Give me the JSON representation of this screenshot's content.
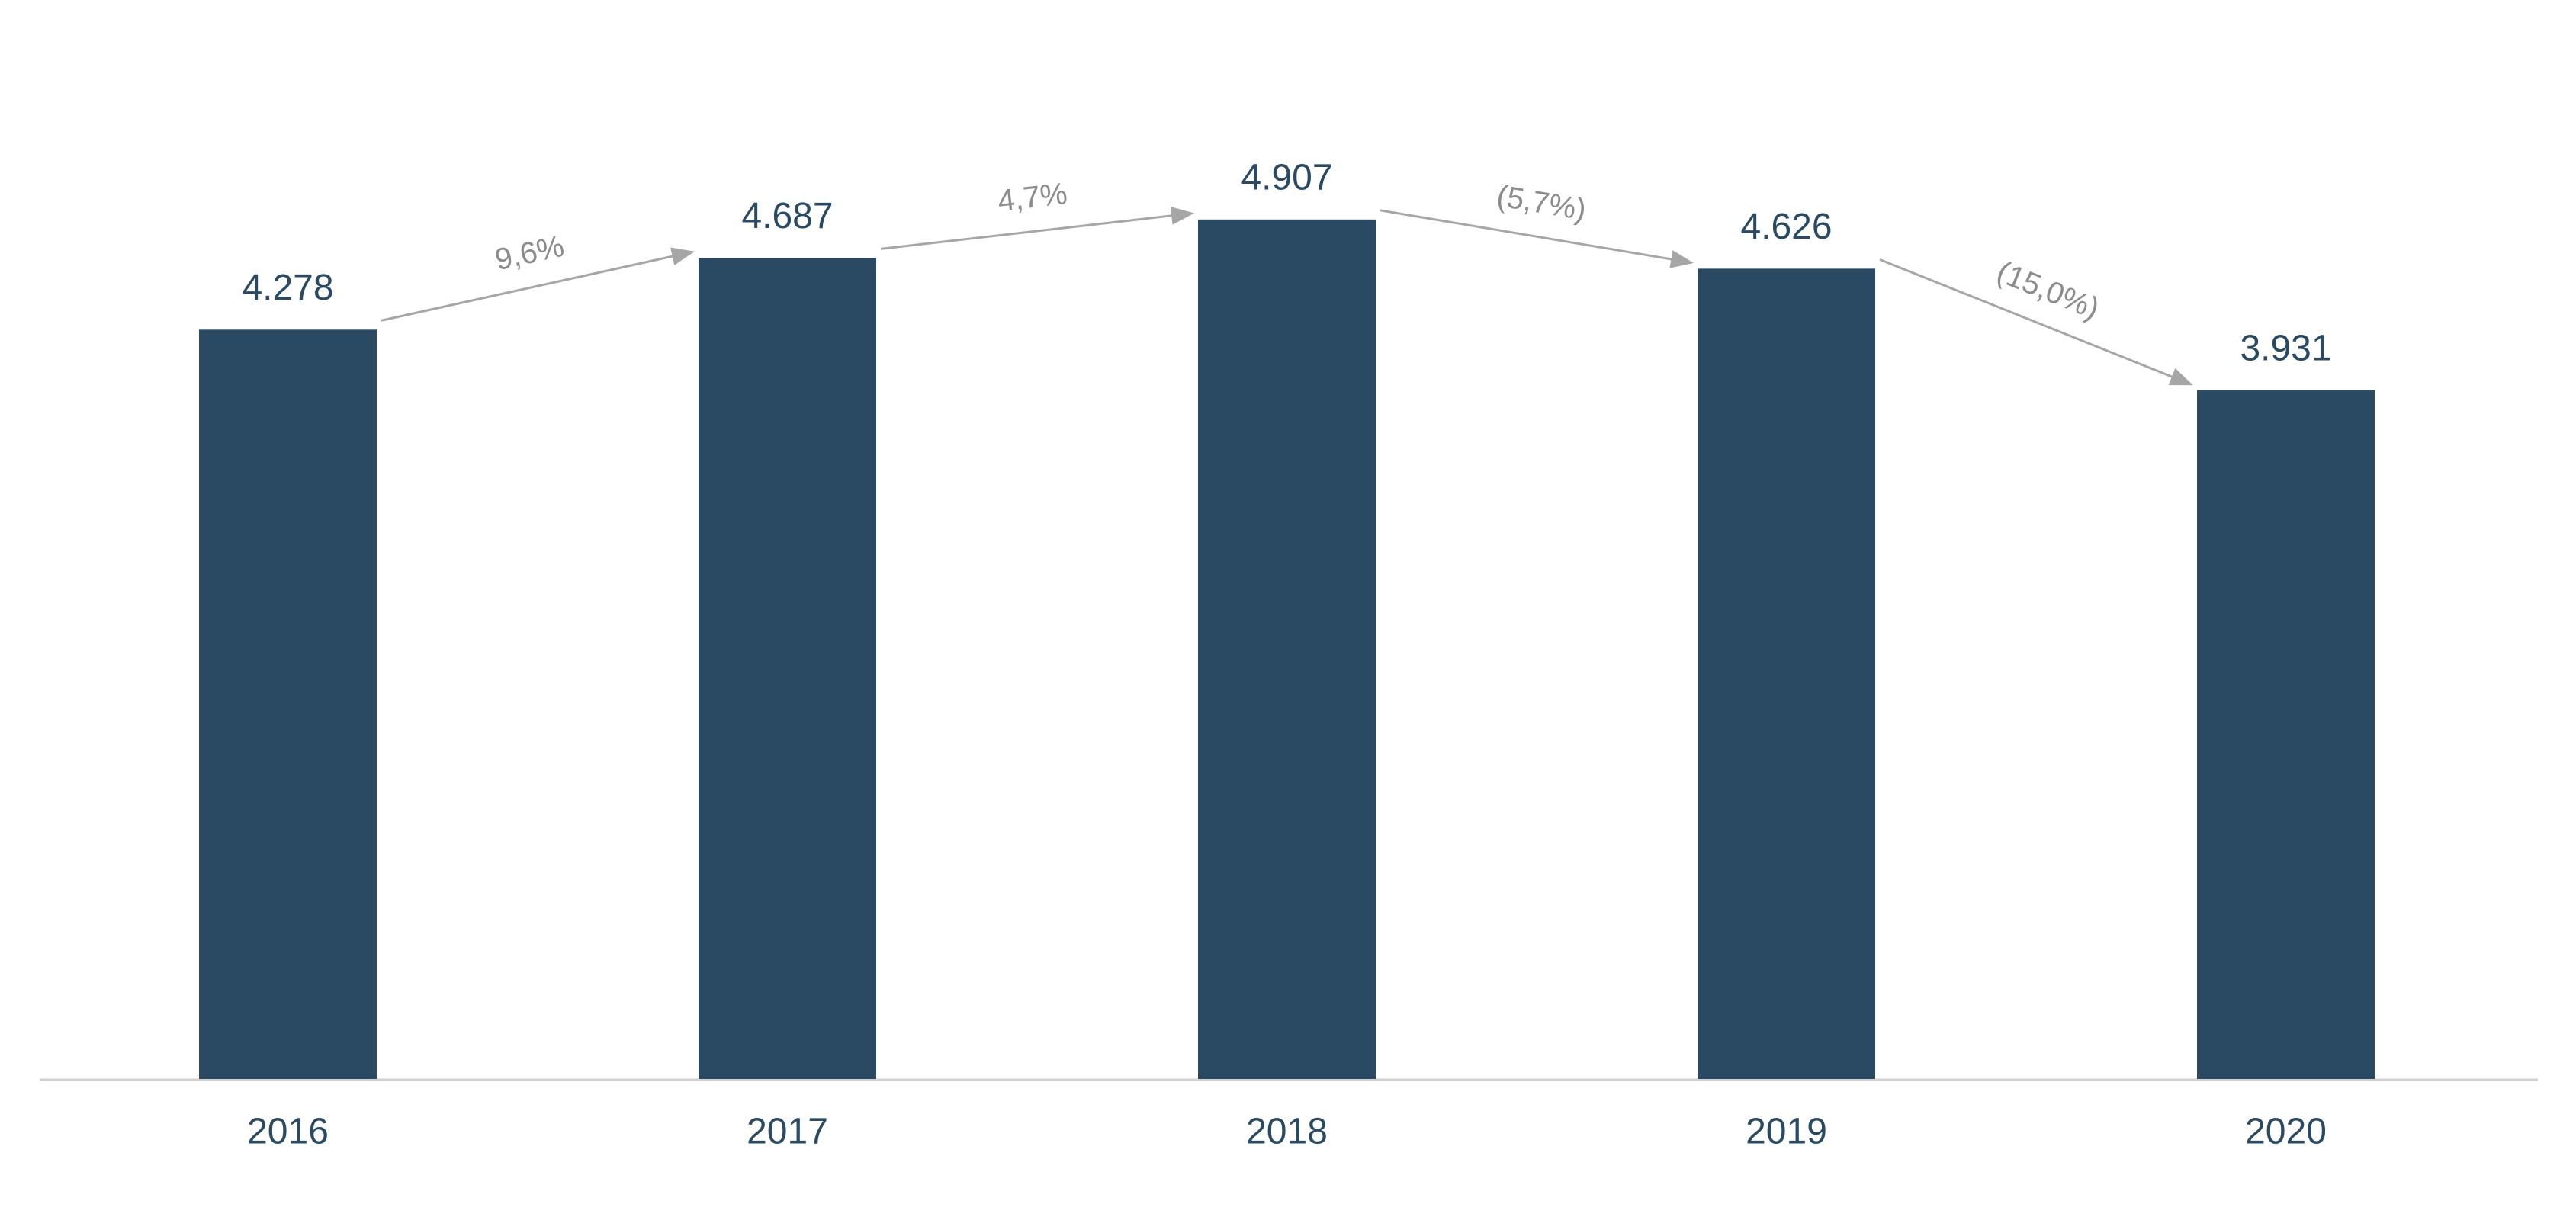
{
  "chart_data": {
    "type": "bar",
    "categories": [
      "2016",
      "2017",
      "2018",
      "2019",
      "2020"
    ],
    "values": [
      4.278,
      4.687,
      4.907,
      4.626,
      3.931
    ],
    "color": "#2a4a63",
    "ylim": [
      0,
      6.16
    ],
    "annotations": [
      "9,6%",
      "4,7%",
      "(5,7%)",
      "(15,0%)"
    ]
  }
}
